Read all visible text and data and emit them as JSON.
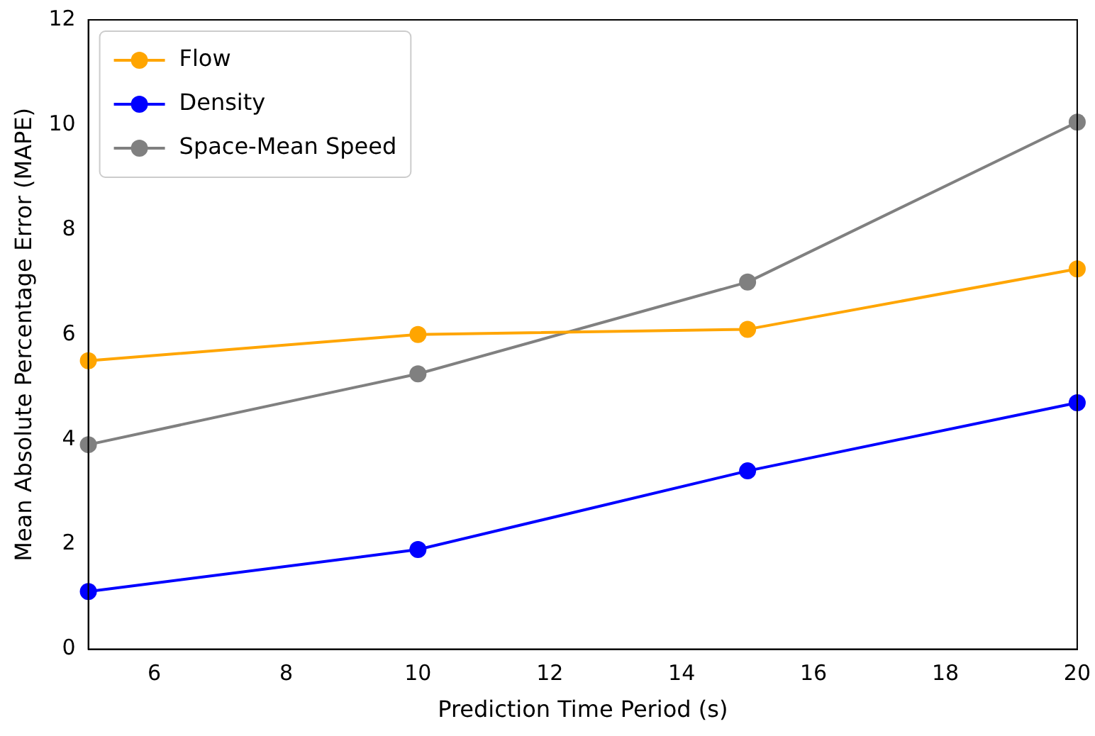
{
  "chart_data": {
    "type": "line",
    "xlabel": "Prediction Time Period (s)",
    "ylabel": "Mean Absolute Percentage Error (MAPE)",
    "x": [
      5,
      10,
      15,
      20
    ],
    "series": [
      {
        "name": "Flow",
        "color": "#ffa500",
        "values": [
          5.5,
          6.0,
          6.1,
          7.25
        ]
      },
      {
        "name": "Density",
        "color": "#0000ff",
        "values": [
          1.1,
          1.9,
          3.4,
          4.7
        ]
      },
      {
        "name": "Space-Mean Speed",
        "color": "#808080",
        "values": [
          3.9,
          5.25,
          7.0,
          10.05
        ]
      }
    ],
    "xlim": [
      5,
      20
    ],
    "xticks": [
      6,
      8,
      10,
      12,
      14,
      16,
      18,
      20
    ],
    "ylim": [
      0,
      12
    ],
    "yticks": [
      0,
      2,
      4,
      6,
      8,
      10,
      12
    ],
    "grid": false,
    "legend": "top left",
    "marker": "circle",
    "line_style": "solid"
  }
}
